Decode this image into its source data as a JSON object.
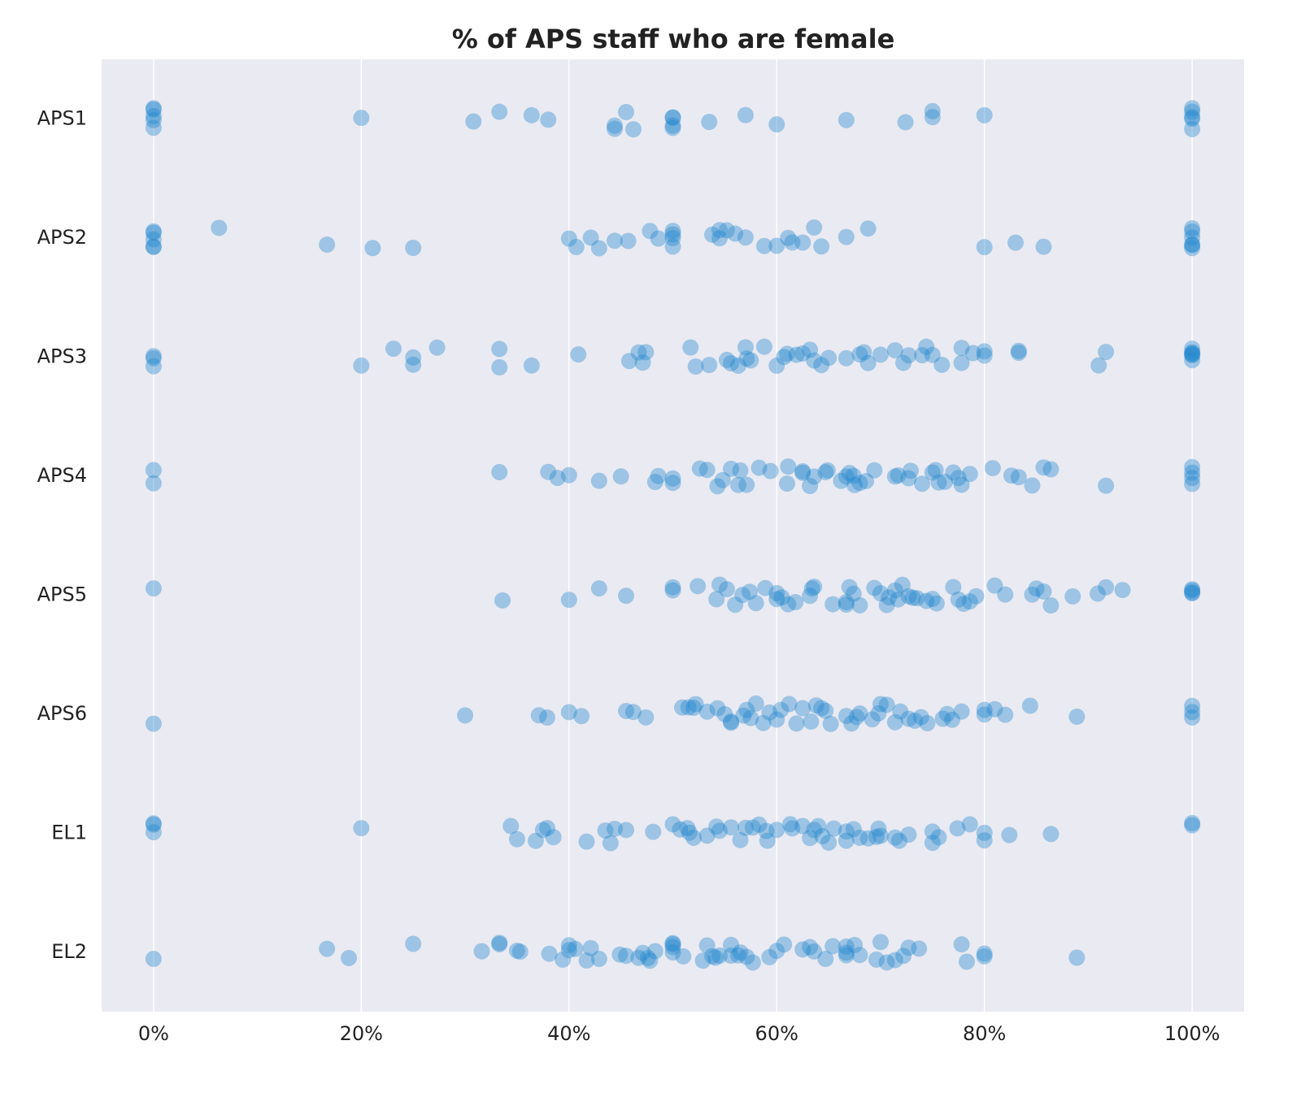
{
  "chart_data": {
    "type": "strip",
    "title": "% of APS staff who are female",
    "categories": [
      "APS1",
      "APS2",
      "APS3",
      "APS4",
      "APS5",
      "APS6",
      "EL1",
      "EL2"
    ],
    "color": "#1f86cc",
    "grid": true,
    "xlim": [
      -5,
      105
    ],
    "xticks": [
      {
        "value": 0,
        "label": "0%"
      },
      {
        "value": 20,
        "label": "20%"
      },
      {
        "value": 40,
        "label": "40%"
      },
      {
        "value": 60,
        "label": "60%"
      },
      {
        "value": 80,
        "label": "80%"
      },
      {
        "value": 100,
        "label": "100%"
      }
    ],
    "values": [
      [
        0,
        0,
        0,
        0,
        0,
        20,
        30.8,
        33.3,
        36.4,
        38,
        44.4,
        44.4,
        45.5,
        46.2,
        50,
        50,
        50,
        50,
        53.5,
        57,
        60,
        66.7,
        72.4,
        75,
        75,
        80,
        100,
        100,
        100,
        100,
        100
      ],
      [
        0,
        0,
        0,
        0,
        0,
        6.3,
        16.7,
        21.1,
        25,
        40,
        40.7,
        42.1,
        42.9,
        44.4,
        45.7,
        47.8,
        48.6,
        50,
        50,
        50,
        50,
        53.8,
        54.5,
        54.5,
        55.2,
        56,
        57,
        58.8,
        60,
        61.1,
        61.5,
        62.5,
        63.6,
        64.3,
        66.7,
        68.8,
        80,
        83,
        85.7,
        100,
        100,
        100,
        100,
        100,
        100
      ],
      [
        0,
        0,
        0,
        20,
        23.1,
        25,
        25,
        27.3,
        33.3,
        33.3,
        36.4,
        40.9,
        45.8,
        46.7,
        47.1,
        47.4,
        51.7,
        52.2,
        53.5,
        55.6,
        55.2,
        56.3,
        57,
        57.5,
        57.1,
        58.8,
        60,
        60.7,
        61,
        61.9,
        62.5,
        63.2,
        63.6,
        64.3,
        65,
        66.7,
        68,
        68.4,
        68.8,
        70,
        71.4,
        72.2,
        72.7,
        74,
        74.4,
        75,
        75.9,
        77.8,
        77.8,
        78.9,
        80,
        80,
        83.3,
        83.3,
        91,
        91.7,
        100,
        100,
        100,
        100,
        100,
        100
      ],
      [
        0,
        0,
        33.3,
        38,
        38.9,
        40,
        42.9,
        45,
        48.3,
        48.6,
        50,
        50,
        52.6,
        53.3,
        54.3,
        54.8,
        55.6,
        56.3,
        56.5,
        57.1,
        58.3,
        59.4,
        61,
        61.1,
        62.5,
        62.5,
        63.2,
        63.6,
        64.7,
        64.9,
        66.2,
        66.7,
        67,
        67.4,
        67.5,
        68,
        68.6,
        69.4,
        71.4,
        71.7,
        72.7,
        72.9,
        74,
        75,
        75.3,
        75.6,
        76.2,
        77,
        77.5,
        77.8,
        78.6,
        80.8,
        82.6,
        83.3,
        84.6,
        85.7,
        86.4,
        91.7,
        100,
        100,
        100,
        100
      ],
      [
        0,
        33.6,
        40,
        42.9,
        45.5,
        50,
        50,
        52.4,
        54.2,
        54.5,
        55.2,
        56,
        56.7,
        57.4,
        58,
        58.9,
        60,
        60,
        60.5,
        61.1,
        61.8,
        63.2,
        63.4,
        63.6,
        65.4,
        66.7,
        66.7,
        67,
        67.4,
        68,
        69.4,
        70,
        70.6,
        70.8,
        71.4,
        71.7,
        72.1,
        72.7,
        73.1,
        73.5,
        74.4,
        75,
        75.4,
        77,
        77.5,
        78,
        78.6,
        79.2,
        81,
        82,
        84.6,
        85,
        85.7,
        86.4,
        88.5,
        90.9,
        91.7,
        93.3,
        100,
        100,
        100,
        100
      ],
      [
        0,
        30,
        37.1,
        37.9,
        40,
        41.2,
        45.5,
        46.2,
        47.4,
        50.9,
        51.5,
        52,
        52.2,
        53.3,
        54.3,
        55,
        55.6,
        55.6,
        56.8,
        57.1,
        57.5,
        58,
        58.7,
        59.3,
        60,
        60.4,
        61.2,
        61.9,
        62.5,
        63.3,
        63.8,
        64.3,
        64.7,
        65.2,
        66.7,
        67.2,
        67.7,
        68,
        69.2,
        69.8,
        70,
        70.6,
        71.4,
        71.9,
        72.7,
        73.3,
        73.9,
        74.5,
        76,
        76.4,
        76.9,
        77.8,
        80,
        80,
        81,
        82,
        84.4,
        88.9,
        100,
        100,
        100
      ],
      [
        0,
        0,
        0,
        20,
        34.4,
        35,
        36.8,
        37.5,
        37.9,
        38.5,
        41.7,
        43.5,
        44,
        44.4,
        45.5,
        48.1,
        50,
        50.7,
        51.4,
        51.6,
        52,
        53.3,
        54.2,
        54.5,
        55.6,
        56.5,
        57,
        57.7,
        58.3,
        59,
        59.1,
        60,
        61.3,
        61.5,
        62.5,
        63.2,
        63.6,
        64,
        64.4,
        65,
        65.5,
        66.7,
        66.7,
        67.4,
        68,
        68.8,
        69.6,
        69.8,
        70,
        71.4,
        71.8,
        72.7,
        75,
        75,
        75.6,
        77.4,
        78.6,
        80,
        80,
        82.4,
        86.4,
        100,
        100
      ],
      [
        0,
        16.7,
        18.8,
        25,
        31.6,
        33.3,
        33.3,
        35,
        35.3,
        38.1,
        39.4,
        40,
        40,
        40.6,
        41.7,
        42.1,
        42.9,
        44.9,
        45.5,
        46.7,
        47.1,
        47.6,
        47.8,
        48.3,
        50,
        50,
        50,
        50,
        51,
        52.9,
        53.3,
        53.8,
        54.1,
        54.5,
        55.6,
        55.6,
        56.3,
        56.5,
        57.1,
        57.7,
        59.3,
        60,
        60.7,
        62.5,
        63.2,
        63.6,
        64.7,
        65.4,
        66.7,
        66.7,
        66.7,
        67.5,
        68,
        69.6,
        70,
        70.6,
        71.4,
        72.2,
        72.7,
        73.7,
        77.8,
        78.3,
        80,
        80,
        88.9
      ]
    ]
  }
}
